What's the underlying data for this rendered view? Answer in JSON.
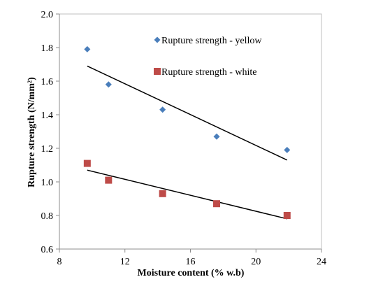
{
  "chart_data": {
    "type": "scatter",
    "title": "",
    "xlabel": "Moisture content (% w.b)",
    "ylabel": "Rupture strength (N/mm²)",
    "xlim": [
      8,
      24
    ],
    "ylim": [
      0.6,
      2.0
    ],
    "xticks": [
      "8",
      "12",
      "16",
      "20",
      "24"
    ],
    "yticks": [
      "0.6",
      "0.8",
      "1.0",
      "1.2",
      "1.4",
      "1.6",
      "1.8",
      "2.0"
    ],
    "grid": false,
    "legend_position": "top-right",
    "series": [
      {
        "name": "Rupture strength - yellow",
        "marker": "diamond",
        "color": "#4a7ebb",
        "x": [
          9.7,
          11.0,
          14.3,
          17.6,
          21.9
        ],
        "y": [
          1.79,
          1.58,
          1.43,
          1.27,
          1.19
        ],
        "trendline": [
          [
            9.7,
            1.69
          ],
          [
            21.9,
            1.13
          ]
        ]
      },
      {
        "name": "Rupture strength - white",
        "marker": "square",
        "color": "#be4b48",
        "x": [
          9.7,
          11.0,
          14.3,
          17.6,
          21.9
        ],
        "y": [
          1.11,
          1.01,
          0.93,
          0.87,
          0.8
        ],
        "trendline": [
          [
            9.7,
            1.07
          ],
          [
            21.9,
            0.78
          ]
        ]
      }
    ]
  }
}
